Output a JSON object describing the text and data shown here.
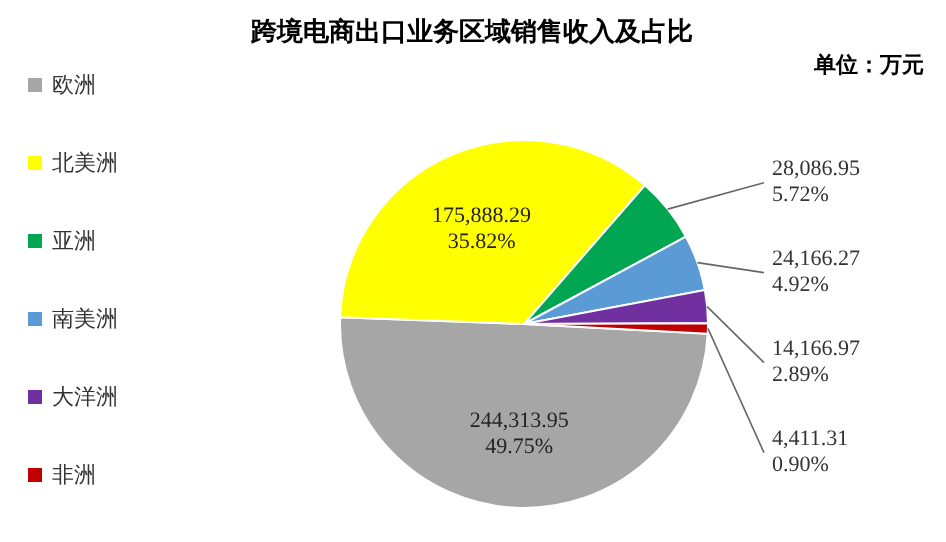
{
  "chart_data": {
    "type": "pie",
    "title": "跨境电商出口业务区域销售收入及占比",
    "annotations": [
      "单位：万元"
    ],
    "categories": [
      "欧洲",
      "北美洲",
      "亚洲",
      "南美洲",
      "大洋洲",
      "非洲"
    ],
    "values": [
      244313.95,
      175888.29,
      28086.95,
      24166.27,
      14166.97,
      4411.31
    ],
    "colors": [
      "#a6a6a6",
      "#ffff00",
      "#00a651",
      "#5b9bd5",
      "#7030a0",
      "#c00000"
    ],
    "value_labels": [
      "244,313.95\n49.75%",
      "175,888.29\n35.82%",
      "28,086.95\n5.72%",
      "24,166.27\n4.92%",
      "14,166.97\n2.89%",
      "4,411.31\n0.90%"
    ],
    "legend": "left"
  }
}
